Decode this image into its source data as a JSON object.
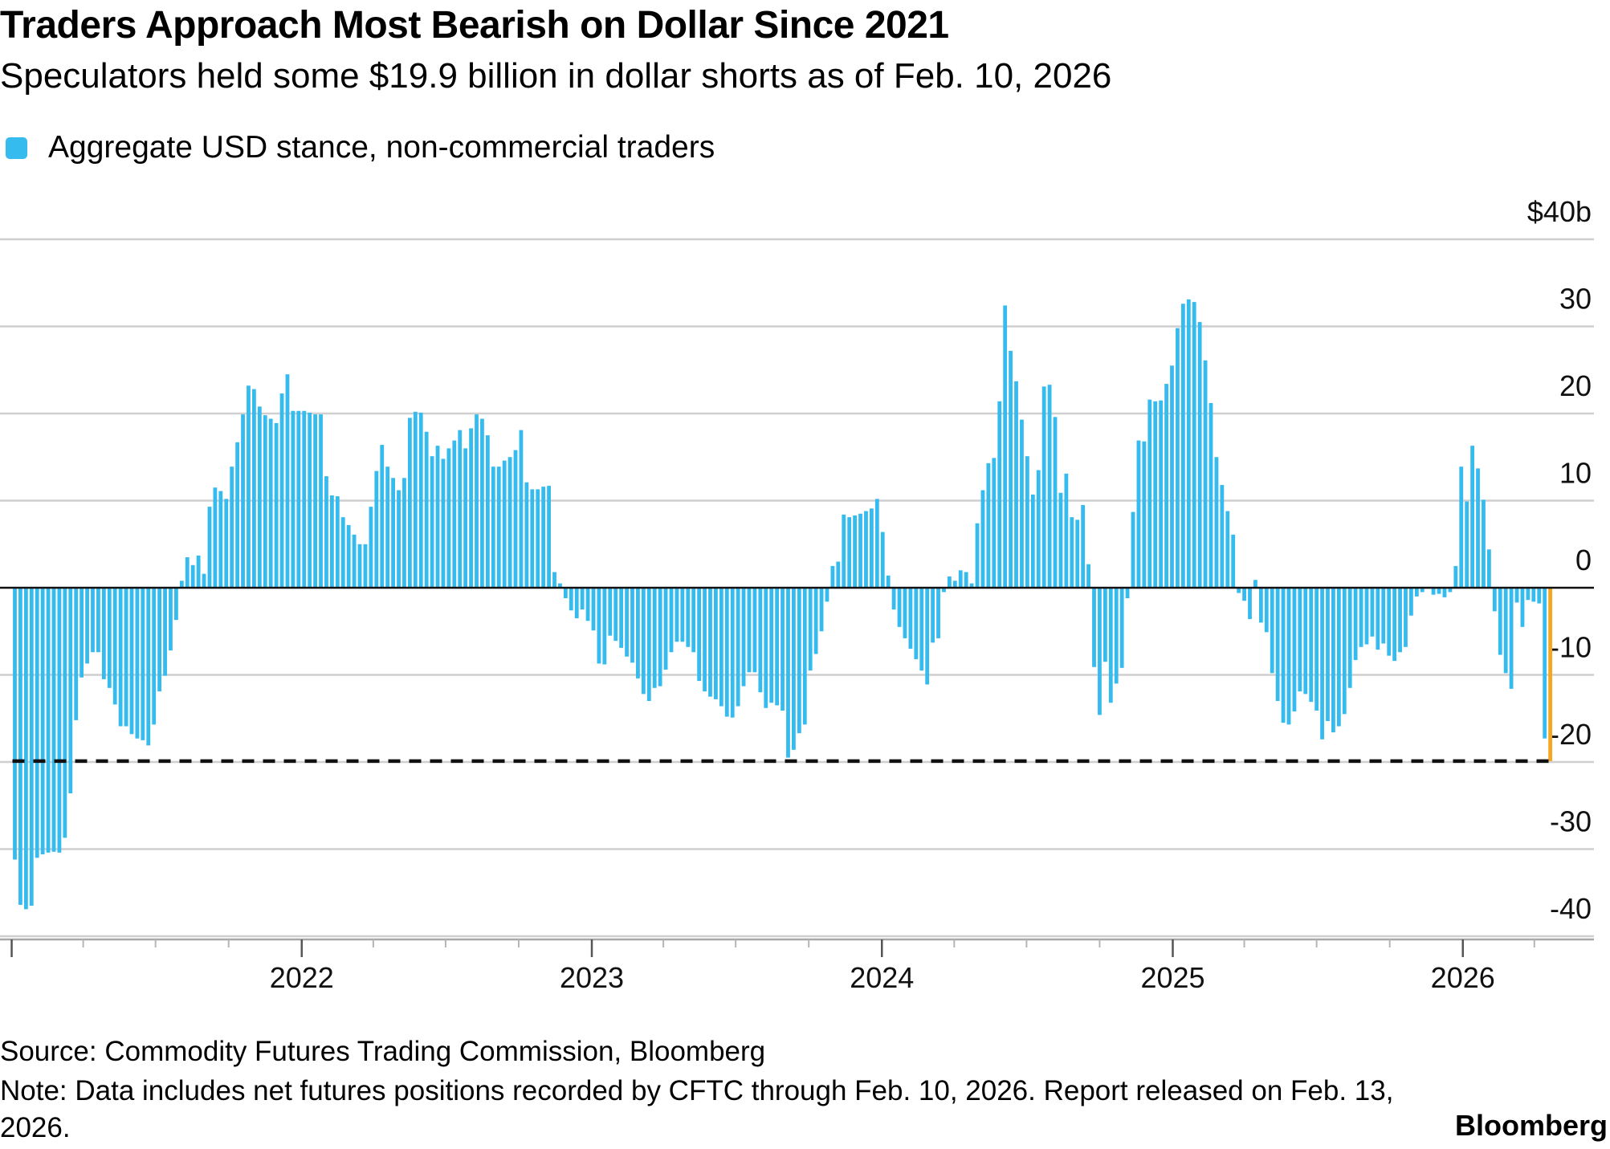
{
  "title": "Traders Approach Most Bearish on Dollar Since 2021",
  "subtitle": "Speculators held some $19.9 billion in dollar shorts as of Feb. 10, 2026",
  "legend": {
    "label": "Aggregate USD stance, non-commercial traders",
    "color": "#36bbef"
  },
  "source": "Source: Commodity Futures Trading Commission, Bloomberg",
  "note": "Note: Data includes net futures positions recorded by CFTC through Feb. 10, 2026. Report released on Feb. 13, 2026.",
  "brand": "Bloomberg",
  "chart_data": {
    "type": "bar",
    "x_start": "2021-01-05",
    "interval_days": 7,
    "ylim": [
      -40,
      40
    ],
    "y_ticks": [
      {
        "value": 40,
        "label": "$40b"
      },
      {
        "value": 30,
        "label": "30"
      },
      {
        "value": 20,
        "label": "20"
      },
      {
        "value": 10,
        "label": "10"
      },
      {
        "value": 0,
        "label": "0"
      },
      {
        "value": -10,
        "label": "-10"
      },
      {
        "value": -20,
        "label": "-20"
      },
      {
        "value": -30,
        "label": "-30"
      },
      {
        "value": -40,
        "label": "-40"
      }
    ],
    "x_ticks": [
      "2022",
      "2023",
      "2024",
      "2025",
      "2026"
    ],
    "bar_color": "#36bbef",
    "latest_color": "#f5a623",
    "reference_line": {
      "value": -19.9,
      "style": "dashed",
      "color": "#111111"
    },
    "values": [
      -31.2,
      -36.4,
      -36.9,
      -36.5,
      -31.0,
      -30.6,
      -30.4,
      -30.3,
      -30.4,
      -28.7,
      -23.6,
      -15.2,
      -10.3,
      -8.7,
      -7.4,
      -7.4,
      -10.5,
      -11.5,
      -13.4,
      -15.9,
      -15.9,
      -16.8,
      -17.3,
      -17.5,
      -18.1,
      -15.7,
      -11.9,
      -10.1,
      -7.2,
      -3.7,
      0.8,
      3.5,
      2.6,
      3.7,
      1.6,
      9.3,
      11.5,
      11.1,
      10.2,
      13.9,
      16.7,
      19.9,
      23.2,
      22.8,
      20.8,
      19.8,
      19.4,
      18.9,
      22.3,
      24.5,
      20.3,
      20.3,
      20.3,
      20.1,
      19.9,
      19.9,
      12.8,
      10.6,
      10.5,
      8.1,
      7.2,
      6.1,
      5.0,
      5.0,
      9.3,
      13.4,
      16.4,
      13.9,
      12.6,
      11.2,
      12.6,
      19.5,
      20.2,
      20.1,
      17.9,
      15.1,
      16.3,
      14.8,
      16.0,
      16.9,
      18.1,
      16.0,
      18.3,
      19.9,
      19.4,
      17.5,
      13.9,
      13.9,
      14.6,
      15.0,
      15.8,
      18.1,
      12.1,
      11.3,
      11.3,
      11.6,
      11.7,
      1.8,
      0.5,
      -1.2,
      -2.6,
      -3.5,
      -2.5,
      -3.8,
      -4.9,
      -8.7,
      -8.8,
      -5.5,
      -6.1,
      -6.9,
      -7.9,
      -8.6,
      -10.4,
      -12.2,
      -13.0,
      -11.5,
      -11.3,
      -9.4,
      -7.4,
      -6.2,
      -6.2,
      -6.8,
      -7.4,
      -10.7,
      -11.9,
      -12.5,
      -12.8,
      -13.6,
      -14.8,
      -14.9,
      -13.6,
      -11.3,
      -9.7,
      -9.7,
      -12.0,
      -13.8,
      -13.2,
      -13.5,
      -14.1,
      -19.5,
      -18.6,
      -16.7,
      -15.7,
      -9.5,
      -7.6,
      -5.0,
      -1.6,
      2.5,
      3.0,
      8.4,
      8.1,
      8.3,
      8.5,
      8.8,
      9.1,
      10.2,
      6.4,
      1.4,
      -2.5,
      -4.5,
      -5.8,
      -7.0,
      -8.2,
      -9.5,
      -11.1,
      -6.3,
      -5.8,
      -0.5,
      1.3,
      0.8,
      2.0,
      1.8,
      0.5,
      7.4,
      11.2,
      14.3,
      14.9,
      21.4,
      32.4,
      27.2,
      23.7,
      19.3,
      15.1,
      10.7,
      13.5,
      23.1,
      23.3,
      19.6,
      10.9,
      13.1,
      8.1,
      7.8,
      9.5,
      2.7,
      -9.1,
      -14.6,
      -8.5,
      -13.2,
      -11.0,
      -9.2,
      -1.2,
      8.7,
      16.9,
      16.8,
      21.6,
      21.4,
      21.5,
      23.4,
      25.5,
      29.8,
      32.6,
      33.1,
      32.8,
      30.5,
      26.1,
      21.2,
      15.0,
      11.8,
      8.8,
      6.1,
      -0.6,
      -1.5,
      -3.6,
      0.9,
      -4.0,
      -5.1,
      -9.8,
      -13.0,
      -15.5,
      -15.7,
      -14.2,
      -11.9,
      -12.2,
      -13.1,
      -14.1,
      -17.4,
      -15.3,
      -16.6,
      -15.9,
      -14.5,
      -11.5,
      -8.3,
      -6.8,
      -6.5,
      -5.6,
      -7.1,
      -6.4,
      -7.8,
      -8.4,
      -7.4,
      -6.8,
      -3.2,
      -1.0,
      -0.5,
      -0.1,
      -0.8,
      -0.7,
      -1.1,
      -0.5,
      2.5,
      13.9,
      9.9,
      16.3,
      13.7,
      10.1,
      4.4,
      -2.7,
      -7.7,
      -9.8,
      -11.6,
      -1.7,
      -4.5,
      -1.4,
      -1.6,
      -1.8,
      -17.3,
      -19.9
    ]
  }
}
